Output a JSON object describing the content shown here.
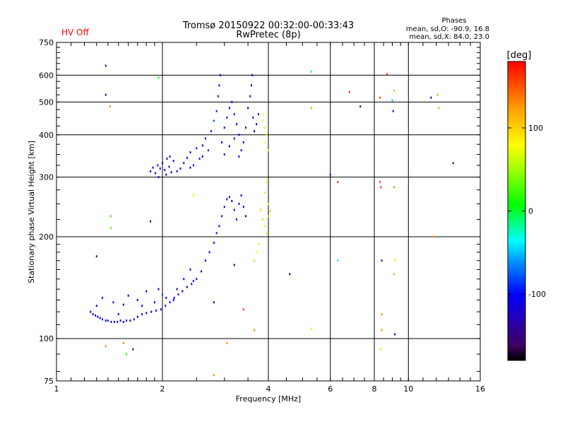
{
  "status_text": "HV Off",
  "colors": {
    "status": "#ff0000",
    "grid": "#000000",
    "background": "#ffffff"
  },
  "chart_data": {
    "type": "scatter",
    "title": "Tromsø 20150922 00:32:00-00:33:43",
    "subtitle": "RwPretec (8p)",
    "phase_info": {
      "heading": "Phases",
      "line_o": "mean, sd,O: -90.9, 16.8",
      "line_x": "mean, sd,X:  84.0, 23.0"
    },
    "xlabel": "Frequency [MHz]",
    "ylabel": "Stationary phase Virtual Height [km]",
    "xscale": "log",
    "yscale": "log",
    "xlim": [
      1,
      16
    ],
    "ylim": [
      75,
      750
    ],
    "x_ticks": [
      1,
      2,
      4,
      6,
      8,
      10,
      16
    ],
    "x_tick_labels": [
      "1",
      "2",
      "4",
      "6",
      "8",
      "10",
      "16"
    ],
    "y_ticks": [
      75,
      100,
      200,
      300,
      400,
      500,
      600,
      750
    ],
    "y_tick_labels": [
      "75",
      "100",
      "200",
      "300",
      "400",
      "500",
      "600",
      "750"
    ],
    "grid": true,
    "colorbar": {
      "label": "[deg]",
      "range": [
        -180,
        180
      ],
      "ticks": [
        100,
        0,
        -100
      ],
      "tick_labels": [
        "100",
        "0",
        "-100"
      ]
    },
    "series": [
      {
        "trace": "low-trace",
        "points": [
          [
            1.25,
            120,
            -110
          ],
          [
            1.27,
            118,
            -105
          ],
          [
            1.29,
            117,
            -112
          ],
          [
            1.31,
            116,
            -108
          ],
          [
            1.33,
            115,
            -115
          ],
          [
            1.35,
            114,
            -110
          ],
          [
            1.38,
            113,
            -105
          ],
          [
            1.4,
            113,
            -112
          ],
          [
            1.43,
            112,
            -108
          ],
          [
            1.46,
            112,
            -110
          ],
          [
            1.49,
            112,
            -115
          ],
          [
            1.52,
            113,
            -108
          ],
          [
            1.55,
            112,
            -112
          ],
          [
            1.58,
            113,
            -110
          ],
          [
            1.62,
            113,
            -105
          ],
          [
            1.66,
            114,
            -112
          ],
          [
            1.7,
            116,
            -108
          ],
          [
            1.75,
            118,
            -110
          ],
          [
            1.8,
            119,
            -112
          ],
          [
            1.86,
            120,
            -105
          ],
          [
            1.92,
            121,
            -110
          ],
          [
            1.98,
            122,
            -108
          ],
          [
            2.04,
            125,
            -112
          ],
          [
            2.1,
            128,
            -100
          ],
          [
            2.16,
            132,
            -110
          ],
          [
            2.22,
            135,
            -105
          ],
          [
            2.28,
            138,
            -112
          ],
          [
            2.35,
            142,
            -108
          ],
          [
            2.42,
            145,
            -110
          ],
          [
            2.5,
            150,
            -105
          ],
          [
            2.58,
            158,
            -110
          ],
          [
            2.65,
            170,
            -112
          ],
          [
            2.72,
            180,
            -108
          ],
          [
            2.8,
            192,
            -105
          ],
          [
            2.85,
            205,
            -110
          ],
          [
            2.9,
            215,
            -112
          ],
          [
            2.95,
            230,
            -108
          ],
          [
            3.0,
            245,
            -110
          ],
          [
            3.05,
            258,
            -112
          ],
          [
            3.1,
            262,
            -105
          ],
          [
            3.15,
            255,
            -110
          ],
          [
            3.2,
            240,
            -108
          ],
          [
            3.25,
            225,
            -112
          ],
          [
            3.3,
            250,
            -110
          ],
          [
            3.35,
            265,
            -105
          ],
          [
            3.4,
            245,
            -112
          ],
          [
            3.45,
            230,
            -108
          ],
          [
            1.35,
            132,
            -110
          ],
          [
            1.45,
            128,
            -108
          ],
          [
            1.55,
            126,
            -112
          ],
          [
            1.6,
            134,
            -105
          ],
          [
            1.7,
            130,
            -110
          ],
          [
            1.8,
            138,
            -112
          ],
          [
            1.9,
            128,
            -108
          ],
          [
            1.95,
            140,
            -110
          ],
          [
            2.05,
            132,
            -112
          ],
          [
            2.2,
            140,
            -108
          ],
          [
            2.3,
            150,
            -105
          ],
          [
            2.4,
            160,
            -112
          ],
          [
            1.3,
            125,
            -120
          ],
          [
            1.5,
            118,
            -118
          ],
          [
            1.75,
            125,
            -115
          ],
          [
            2.0,
            135,
            -85
          ],
          [
            2.15,
            130,
            -118
          ],
          [
            2.45,
            148,
            -95
          ]
        ]
      },
      {
        "trace": "high-trace",
        "points": [
          [
            1.85,
            312,
            -110
          ],
          [
            1.88,
            320,
            -108
          ],
          [
            1.91,
            308,
            -112
          ],
          [
            1.94,
            325,
            -105
          ],
          [
            1.97,
            318,
            -110
          ],
          [
            2.0,
            330,
            -112
          ],
          [
            2.03,
            315,
            -108
          ],
          [
            2.06,
            340,
            -110
          ],
          [
            2.09,
            322,
            -105
          ],
          [
            2.12,
            310,
            -112
          ],
          [
            2.15,
            335,
            -108
          ],
          [
            1.95,
            300,
            -110
          ],
          [
            2.05,
            305,
            -112
          ],
          [
            2.1,
            345,
            -108
          ],
          [
            2.2,
            312,
            -110
          ],
          [
            2.25,
            318,
            -105
          ],
          [
            2.3,
            330,
            -112
          ],
          [
            2.35,
            342,
            -108
          ],
          [
            2.4,
            355,
            -110
          ],
          [
            2.45,
            325,
            -112
          ],
          [
            2.5,
            365,
            -105
          ],
          [
            2.55,
            340,
            -110
          ],
          [
            2.6,
            372,
            -108
          ],
          [
            2.65,
            390,
            -110
          ],
          [
            2.7,
            360,
            -85
          ],
          [
            2.75,
            410,
            -95
          ],
          [
            2.8,
            440,
            -80
          ],
          [
            2.85,
            470,
            -90
          ],
          [
            2.88,
            520,
            -100
          ],
          [
            2.9,
            560,
            -110
          ],
          [
            2.92,
            600,
            -105
          ],
          [
            2.95,
            380,
            -112
          ],
          [
            3.0,
            420,
            -108
          ],
          [
            3.05,
            450,
            -110
          ],
          [
            3.1,
            480,
            -112
          ],
          [
            3.15,
            500,
            -105
          ],
          [
            3.2,
            460,
            -110
          ],
          [
            3.25,
            430,
            -108
          ],
          [
            3.3,
            400,
            -112
          ],
          [
            3.35,
            360,
            -110
          ],
          [
            3.4,
            380,
            -105
          ],
          [
            3.45,
            420,
            -112
          ],
          [
            3.5,
            480,
            -110
          ],
          [
            3.55,
            520,
            -108
          ],
          [
            3.58,
            560,
            -112
          ],
          [
            3.6,
            600,
            -110
          ],
          [
            3.62,
            450,
            -105
          ],
          [
            3.65,
            410,
            -112
          ],
          [
            3.0,
            350,
            -110
          ],
          [
            3.1,
            370,
            -112
          ],
          [
            3.2,
            390,
            -108
          ],
          [
            3.3,
            345,
            -110
          ],
          [
            2.6,
            345,
            -112
          ],
          [
            2.4,
            320,
            -108
          ],
          [
            3.7,
            430,
            -105
          ],
          [
            3.75,
            460,
            -100
          ]
        ]
      },
      {
        "trace": "x-mode",
        "points": [
          [
            3.85,
            440,
            90
          ],
          [
            3.9,
            420,
            95
          ],
          [
            3.95,
            400,
            100
          ],
          [
            3.92,
            380,
            85
          ],
          [
            4.0,
            360,
            90
          ],
          [
            3.88,
            460,
            80
          ],
          [
            3.8,
            240,
            95
          ],
          [
            3.85,
            225,
            100
          ],
          [
            3.9,
            215,
            90
          ],
          [
            3.95,
            205,
            85
          ],
          [
            4.0,
            230,
            95
          ],
          [
            4.05,
            238,
            100
          ],
          [
            3.75,
            190,
            90
          ],
          [
            3.7,
            180,
            85
          ],
          [
            3.65,
            170,
            100
          ],
          [
            3.9,
            270,
            95
          ],
          [
            3.95,
            290,
            85
          ],
          [
            4.0,
            250,
            90
          ]
        ]
      },
      {
        "trace": "scattered",
        "points": [
          [
            1.38,
            640,
            -140
          ],
          [
            1.38,
            525,
            -145
          ],
          [
            1.42,
            485,
            130
          ],
          [
            1.43,
            230,
            20
          ],
          [
            1.43,
            212,
            30
          ],
          [
            1.3,
            175,
            -150
          ],
          [
            1.38,
            95,
            130
          ],
          [
            1.55,
            97,
            130
          ],
          [
            1.58,
            90,
            20
          ],
          [
            1.65,
            93,
            -150
          ],
          [
            1.85,
            222,
            -160
          ],
          [
            1.95,
            590,
            10
          ],
          [
            2.45,
            265,
            60
          ],
          [
            2.8,
            128,
            -130
          ],
          [
            2.8,
            78,
            130
          ],
          [
            3.05,
            97,
            130
          ],
          [
            3.2,
            165,
            -140
          ],
          [
            3.4,
            122,
            160
          ],
          [
            3.65,
            106,
            130
          ],
          [
            4.6,
            155,
            -150
          ],
          [
            5.3,
            615,
            -40
          ],
          [
            5.3,
            480,
            120
          ],
          [
            5.3,
            107,
            70
          ],
          [
            6.0,
            305,
            -90
          ],
          [
            6.3,
            290,
            160
          ],
          [
            6.3,
            170,
            -40
          ],
          [
            6.8,
            535,
            160
          ],
          [
            7.3,
            485,
            -150
          ],
          [
            8.3,
            515,
            160
          ],
          [
            8.3,
            290,
            150
          ],
          [
            8.35,
            280,
            160
          ],
          [
            8.4,
            170,
            -150
          ],
          [
            8.4,
            118,
            130
          ],
          [
            8.4,
            106,
            130
          ],
          [
            8.35,
            93,
            60
          ],
          [
            8.7,
            605,
            160
          ],
          [
            9.0,
            505,
            -50
          ],
          [
            9.05,
            470,
            -120
          ],
          [
            9.1,
            540,
            120
          ],
          [
            9.1,
            280,
            130
          ],
          [
            9.15,
            170,
            60
          ],
          [
            9.1,
            155,
            120
          ],
          [
            9.15,
            103,
            -140
          ],
          [
            11.6,
            515,
            -130
          ],
          [
            11.8,
            200,
            120
          ],
          [
            12.1,
            525,
            120
          ],
          [
            12.2,
            480,
            120
          ],
          [
            13.4,
            330,
            -140
          ]
        ]
      }
    ]
  }
}
